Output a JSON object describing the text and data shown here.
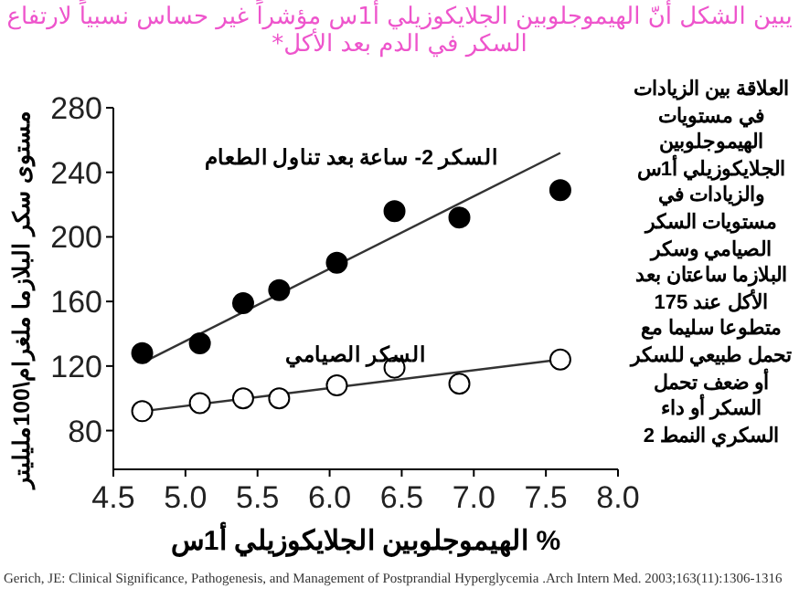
{
  "chart_data": {
    "type": "scatter",
    "title": "يبين الشكل أنّ الهيموجلوبين الجلايكوزيلي أ1س مؤشراً غير حساس نسبياً لارتفاع السكر في الدم بعد الأكل*",
    "xlabel": "% الهيموجلوبين الجلايكوزيلي أ1س",
    "ylabel": "مستوى سكر البلازما ملغرام\\100مليليتر",
    "xlim": [
      4.5,
      8.0
    ],
    "ylim": [
      56,
      280
    ],
    "xticks": [
      4.5,
      {
        "value": 5.0,
        "label": "5.0"
      },
      5.5,
      {
        "value": 6.0,
        "label": "6.0"
      },
      6.5,
      {
        "value": 7.0,
        "label": "7.0"
      },
      7.5,
      {
        "value": 8.0,
        "label": "8.0"
      }
    ],
    "yticks": [
      80,
      120,
      160,
      200,
      240,
      280
    ],
    "grid": false,
    "marker": "circle",
    "series": [
      {
        "name": "السكر 2- ساعة بعد تناول الطعام",
        "color": "#000000",
        "x": [
          4.7,
          5.1,
          5.4,
          5.65,
          6.05,
          6.45,
          6.9,
          7.6
        ],
        "values": [
          128,
          134,
          159,
          167,
          184,
          216,
          212,
          229
        ]
      },
      {
        "name": "السكر الصيامي",
        "color": "#ffffff",
        "x": [
          4.7,
          5.1,
          5.4,
          5.65,
          6.05,
          6.45,
          6.9,
          7.6
        ],
        "values": [
          92,
          97,
          100,
          100,
          108,
          119,
          109,
          124
        ]
      },
      {
        "type": "line",
        "marker": "none",
        "color": "#333333",
        "x": [
          4.7,
          7.6
        ],
        "values": [
          122,
          252
        ]
      },
      {
        "type": "line",
        "marker": "none",
        "color": "#333333",
        "x": [
          4.7,
          7.6
        ],
        "values": [
          92,
          124
        ]
      }
    ],
    "annotations": [
      "العلاقة بين الزيادات في مستويات الهيموجلوبين الجلايكوزيلي أ1س والزيادات في مستويات السكر الصيامي وسكر البلازما ساعتان بعد الأكل عند 175 متطوعا سليما مع تحمل طبيعي للسكر أو ضعف تحمل السكر أو داء السكري النمط 2",
      "Gerich, JE: Clinical Significance, Pathogenesis, and Management of Postprandial Hyperglycemia .Arch Intern Med. 2003;163(11):1306-1316"
    ]
  }
}
